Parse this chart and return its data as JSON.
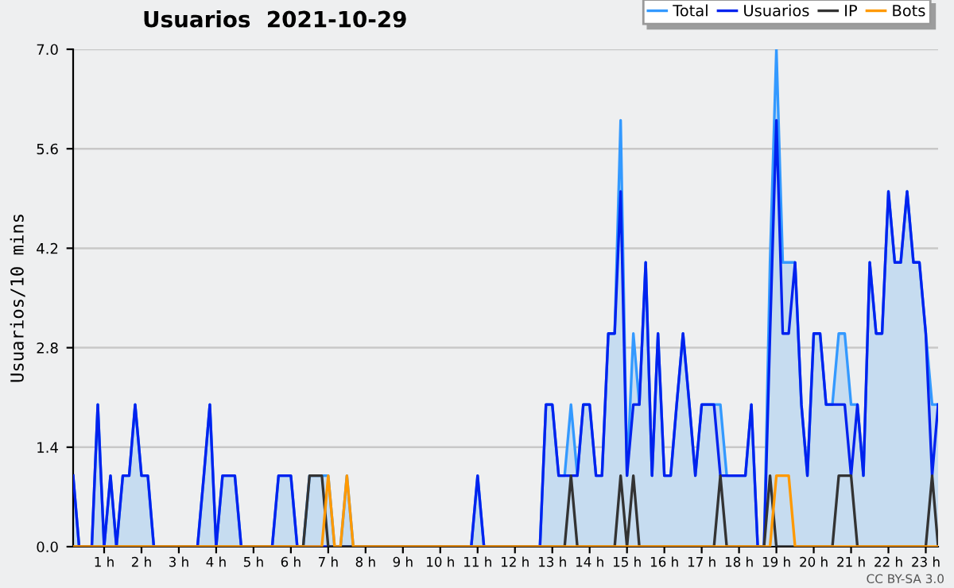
{
  "chart_data": {
    "type": "line",
    "title": "Usuarios  2021-10-29",
    "ylabel": "Usuarios/10 mins",
    "x": [
      0.17,
      0.33,
      0.5,
      0.67,
      0.83,
      1,
      1.17,
      1.33,
      1.5,
      1.67,
      1.83,
      2,
      2.17,
      2.33,
      2.5,
      2.67,
      2.83,
      3,
      3.17,
      3.33,
      3.5,
      3.67,
      3.83,
      4,
      4.17,
      4.33,
      4.5,
      4.67,
      4.83,
      5,
      5.17,
      5.33,
      5.5,
      5.67,
      5.83,
      6,
      6.17,
      6.33,
      6.5,
      6.67,
      6.83,
      7,
      7.17,
      7.33,
      7.5,
      7.67,
      7.83,
      8,
      8.17,
      8.33,
      8.5,
      8.67,
      8.83,
      9,
      9.17,
      9.33,
      9.5,
      9.67,
      9.83,
      10,
      10.17,
      10.33,
      10.5,
      10.67,
      10.83,
      11,
      11.17,
      11.33,
      11.5,
      11.67,
      11.83,
      12,
      12.17,
      12.33,
      12.5,
      12.67,
      12.83,
      13,
      13.17,
      13.33,
      13.5,
      13.67,
      13.83,
      14,
      14.17,
      14.33,
      14.5,
      14.67,
      14.83,
      15,
      15.17,
      15.33,
      15.5,
      15.67,
      15.83,
      16,
      16.17,
      16.33,
      16.5,
      16.67,
      16.83,
      17,
      17.17,
      17.33,
      17.5,
      17.67,
      17.83,
      18,
      18.17,
      18.33,
      18.5,
      18.67,
      18.83,
      19,
      19.17,
      19.33,
      19.5,
      19.67,
      19.83,
      20,
      20.17,
      20.33,
      20.5,
      20.67,
      20.83,
      21,
      21.17,
      21.33,
      21.5,
      21.67,
      21.83,
      22,
      22.17,
      22.33,
      22.5,
      22.67,
      22.83,
      23,
      23.17,
      23.33
    ],
    "series": [
      {
        "name": "Total",
        "type": "area",
        "color": "#3399ff",
        "values": [
          1,
          0,
          0,
          0,
          2,
          0,
          1,
          0,
          1,
          1,
          2,
          1,
          1,
          0,
          0,
          0,
          0,
          0,
          0,
          0,
          0,
          1,
          2,
          0,
          1,
          1,
          1,
          0,
          0,
          0,
          0,
          0,
          0,
          1,
          1,
          1,
          0,
          0,
          1,
          1,
          1,
          1,
          0,
          0,
          1,
          0,
          0,
          0,
          0,
          0,
          0,
          0,
          0,
          0,
          0,
          0,
          0,
          0,
          0,
          0,
          0,
          0,
          0,
          0,
          0,
          1,
          0,
          0,
          0,
          0,
          0,
          0,
          0,
          0,
          0,
          0,
          2,
          2,
          1,
          1,
          2,
          1,
          2,
          2,
          1,
          1,
          3,
          3,
          6,
          1,
          3,
          2,
          4,
          1,
          3,
          1,
          1,
          2,
          3,
          2,
          1,
          2,
          2,
          2,
          2,
          1,
          1,
          1,
          1,
          2,
          0,
          0,
          4,
          7,
          4,
          4,
          4,
          2,
          1,
          3,
          3,
          2,
          2,
          3,
          3,
          2,
          2,
          1,
          4,
          3,
          3,
          5,
          4,
          4,
          5,
          4,
          4,
          3,
          2,
          2
        ]
      },
      {
        "name": "Usuarios",
        "color": "#0022ee",
        "values": [
          1,
          0,
          0,
          0,
          2,
          0,
          1,
          0,
          1,
          1,
          2,
          1,
          1,
          0,
          0,
          0,
          0,
          0,
          0,
          0,
          0,
          1,
          2,
          0,
          1,
          1,
          1,
          0,
          0,
          0,
          0,
          0,
          0,
          1,
          1,
          1,
          0,
          0,
          0,
          0,
          0,
          0,
          0,
          0,
          0,
          0,
          0,
          0,
          0,
          0,
          0,
          0,
          0,
          0,
          0,
          0,
          0,
          0,
          0,
          0,
          0,
          0,
          0,
          0,
          0,
          1,
          0,
          0,
          0,
          0,
          0,
          0,
          0,
          0,
          0,
          0,
          2,
          2,
          1,
          1,
          1,
          1,
          2,
          2,
          1,
          1,
          3,
          3,
          5,
          1,
          2,
          2,
          4,
          1,
          3,
          1,
          1,
          2,
          3,
          2,
          1,
          2,
          2,
          2,
          1,
          1,
          1,
          1,
          1,
          2,
          0,
          0,
          3,
          6,
          3,
          3,
          4,
          2,
          1,
          3,
          3,
          2,
          2,
          2,
          2,
          1,
          2,
          1,
          4,
          3,
          3,
          5,
          4,
          4,
          5,
          4,
          4,
          3,
          1,
          2
        ]
      },
      {
        "name": "IP",
        "color": "#333333",
        "values": [
          0,
          0,
          0,
          0,
          0,
          0,
          0,
          0,
          0,
          0,
          0,
          0,
          0,
          0,
          0,
          0,
          0,
          0,
          0,
          0,
          0,
          0,
          0,
          0,
          0,
          0,
          0,
          0,
          0,
          0,
          0,
          0,
          0,
          0,
          0,
          0,
          0,
          0,
          1,
          1,
          1,
          0,
          0,
          0,
          0,
          0,
          0,
          0,
          0,
          0,
          0,
          0,
          0,
          0,
          0,
          0,
          0,
          0,
          0,
          0,
          0,
          0,
          0,
          0,
          0,
          0,
          0,
          0,
          0,
          0,
          0,
          0,
          0,
          0,
          0,
          0,
          0,
          0,
          0,
          0,
          1,
          0,
          0,
          0,
          0,
          0,
          0,
          0,
          1,
          0,
          1,
          0,
          0,
          0,
          0,
          0,
          0,
          0,
          0,
          0,
          0,
          0,
          0,
          0,
          1,
          0,
          0,
          0,
          0,
          0,
          0,
          0,
          1,
          0,
          0,
          0,
          0,
          0,
          0,
          0,
          0,
          0,
          0,
          1,
          1,
          1,
          0,
          0,
          0,
          0,
          0,
          0,
          0,
          0,
          0,
          0,
          0,
          0,
          1,
          0
        ]
      },
      {
        "name": "Bots",
        "color": "#ff9900",
        "values": [
          0,
          0,
          0,
          0,
          0,
          0,
          0,
          0,
          0,
          0,
          0,
          0,
          0,
          0,
          0,
          0,
          0,
          0,
          0,
          0,
          0,
          0,
          0,
          0,
          0,
          0,
          0,
          0,
          0,
          0,
          0,
          0,
          0,
          0,
          0,
          0,
          0,
          0,
          0,
          0,
          0,
          1,
          0,
          0,
          1,
          0,
          0,
          0,
          0,
          0,
          0,
          0,
          0,
          0,
          0,
          0,
          0,
          0,
          0,
          0,
          0,
          0,
          0,
          0,
          0,
          0,
          0,
          0,
          0,
          0,
          0,
          0,
          0,
          0,
          0,
          0,
          0,
          0,
          0,
          0,
          0,
          0,
          0,
          0,
          0,
          0,
          0,
          0,
          0,
          0,
          0,
          0,
          0,
          0,
          0,
          0,
          0,
          0,
          0,
          0,
          0,
          0,
          0,
          0,
          0,
          0,
          0,
          0,
          0,
          0,
          0,
          0,
          0,
          1,
          1,
          1,
          0,
          0,
          0,
          0,
          0,
          0,
          0,
          0,
          0,
          0,
          0,
          0,
          0,
          0,
          0,
          0,
          0,
          0,
          0,
          0,
          0,
          0,
          0,
          0
        ]
      }
    ],
    "xlim": [
      0.17,
      23.33
    ],
    "xticks": [
      {
        "value": 1,
        "label": "1 h"
      },
      {
        "value": 2,
        "label": "2 h"
      },
      {
        "value": 3,
        "label": "3 h"
      },
      {
        "value": 4,
        "label": "4 h"
      },
      {
        "value": 5,
        "label": "5 h"
      },
      {
        "value": 6,
        "label": "6 h"
      },
      {
        "value": 7,
        "label": "7 h"
      },
      {
        "value": 8,
        "label": "8 h"
      },
      {
        "value": 9,
        "label": "9 h"
      },
      {
        "value": 10,
        "label": "10 h"
      },
      {
        "value": 11,
        "label": "11 h"
      },
      {
        "value": 12,
        "label": "12 h"
      },
      {
        "value": 13,
        "label": "13 h"
      },
      {
        "value": 14,
        "label": "14 h"
      },
      {
        "value": 15,
        "label": "15 h"
      },
      {
        "value": 16,
        "label": "16 h"
      },
      {
        "value": 17,
        "label": "17 h"
      },
      {
        "value": 18,
        "label": "18 h"
      },
      {
        "value": 19,
        "label": "19 h"
      },
      {
        "value": 20,
        "label": "20 h"
      },
      {
        "value": 21,
        "label": "21 h"
      },
      {
        "value": 22,
        "label": "22 h"
      },
      {
        "value": 23,
        "label": "23 h"
      }
    ],
    "ylim": [
      0,
      7
    ],
    "yticks": [
      {
        "value": 0,
        "label": "0.0"
      },
      {
        "value": 1.4,
        "label": "1.4"
      },
      {
        "value": 2.8,
        "label": "2.8"
      },
      {
        "value": 4.2,
        "label": "4.2"
      },
      {
        "value": 5.6,
        "label": "5.6"
      },
      {
        "value": 7,
        "label": "7.0"
      }
    ],
    "grid": "y",
    "legend": "top right",
    "annotations": [
      "CC BY-SA 3.0"
    ]
  }
}
